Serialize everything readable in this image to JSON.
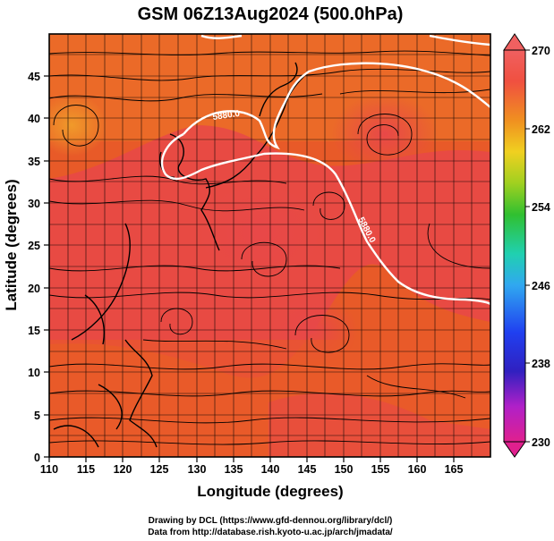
{
  "title": "GSM 06Z13Aug2024 (500.0hPa)",
  "xlabel": "Longitude (degrees)",
  "ylabel": "Latitude (degrees)",
  "credits": {
    "line1": "Drawing by DCL (https://www.gfd-dennou.org/library/dcl/)",
    "line2": "Data from http://database.rish.kyoto-u.ac.jp/arch/jmadata/"
  },
  "map": {
    "lon_range": [
      110,
      170
    ],
    "lat_range": [
      0,
      50
    ],
    "x_ticks": [
      "110",
      "115",
      "120",
      "125",
      "130",
      "135",
      "140",
      "145",
      "150",
      "155",
      "160",
      "165"
    ],
    "y_ticks": [
      "0",
      "5",
      "10",
      "15",
      "20",
      "25",
      "30",
      "35",
      "40",
      "45"
    ],
    "grid_lon_step": 2.5,
    "grid_lat_step": 2.5,
    "field": "temperature (K) shaded, geopotential height contour, wind streamlines",
    "contour_labels": [
      {
        "text": "5880.0",
        "lon": 135,
        "lat": 41.5
      },
      {
        "text": "5880.0",
        "lon": 152,
        "lat": 29.5
      }
    ],
    "colors": {
      "warm_red": "#e84848",
      "orange_red": "#e85a28",
      "orange": "#f07d20",
      "contour": "#ffffff",
      "coast": "#000000"
    }
  },
  "colorbar": {
    "min": 230,
    "max": 270,
    "tick_labels": [
      "270",
      "262",
      "254",
      "246",
      "238",
      "230"
    ],
    "stops": [
      "#e0208e",
      "#b020c8",
      "#3020c0",
      "#2040f0",
      "#30a8f0",
      "#20d0b0",
      "#30c030",
      "#a0d020",
      "#f0d020",
      "#f09020",
      "#f05040",
      "#f06060"
    ]
  }
}
